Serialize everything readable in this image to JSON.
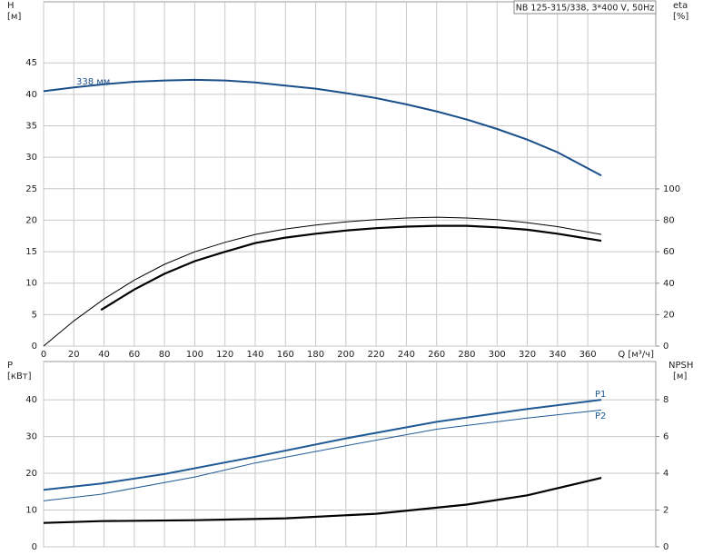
{
  "chart_data": [
    {
      "type": "line",
      "title": "NB 125-315/338, 3*400 V, 50Hz",
      "y_label": "H",
      "y_unit": "[м]",
      "y2_label": "eta",
      "y2_unit": "[%]",
      "x_label": "Q [м³/ч]",
      "xlim": [
        0,
        405
      ],
      "xticks": [
        0,
        20,
        40,
        60,
        80,
        100,
        120,
        140,
        160,
        180,
        200,
        220,
        240,
        260,
        280,
        300,
        320,
        340,
        360
      ],
      "ylim": [
        0,
        54.7
      ],
      "yticks": [
        0,
        5,
        10,
        15,
        20,
        25,
        30,
        35,
        40,
        45
      ],
      "y2lim": [
        0,
        219
      ],
      "y2ticks": [
        0,
        20,
        40,
        60,
        80,
        100
      ],
      "grid": true,
      "series": [
        {
          "name": "338 мм",
          "color": "#1b4f8a",
          "x": [
            0,
            20,
            40,
            60,
            80,
            100,
            120,
            140,
            160,
            180,
            200,
            220,
            240,
            260,
            280,
            300,
            320,
            340,
            369
          ],
          "values": [
            40.5,
            41.1,
            41.6,
            42.0,
            42.2,
            42.3,
            42.2,
            41.9,
            41.4,
            40.9,
            40.2,
            39.4,
            38.4,
            37.3,
            36.0,
            34.5,
            32.8,
            30.8,
            27.1
          ]
        },
        {
          "color": "#000000",
          "axis": "y2",
          "x": [
            0,
            20,
            40,
            60,
            80,
            100,
            120,
            140,
            160,
            180,
            200,
            220,
            240,
            260,
            280,
            300,
            320,
            340,
            369
          ],
          "values": [
            0,
            16,
            30,
            42,
            52,
            60,
            66,
            71,
            74.5,
            77,
            79,
            80.5,
            81.5,
            82,
            81.5,
            80.5,
            78.5,
            76,
            71
          ]
        },
        {
          "color": "#000000",
          "axis": "y2",
          "x": [
            38,
            60,
            80,
            100,
            120,
            140,
            160,
            180,
            200,
            220,
            240,
            260,
            280,
            300,
            320,
            340,
            369
          ],
          "values": [
            23,
            36,
            46,
            54,
            60,
            65.5,
            69,
            71.5,
            73.5,
            75,
            76,
            76.5,
            76.5,
            75.5,
            74,
            71.5,
            67
          ]
        }
      ]
    },
    {
      "type": "line",
      "y_label": "P",
      "y_unit": "[кВт]",
      "y2_label": "NPSH",
      "y2_unit": "[м]",
      "xlim": [
        0,
        405
      ],
      "xticks": [
        0,
        20,
        40,
        60,
        80,
        100,
        120,
        140,
        160,
        180,
        200,
        220,
        240,
        260,
        280,
        300,
        320,
        340,
        360
      ],
      "ylim": [
        0,
        50.4
      ],
      "yticks": [
        0,
        10,
        20,
        30,
        40
      ],
      "y2lim": [
        0,
        10.08
      ],
      "y2ticks": [
        0,
        2,
        4,
        6,
        8
      ],
      "grid": true,
      "series": [
        {
          "name": "P1",
          "color": "#1f5a96",
          "x": [
            0,
            38,
            80,
            140,
            200,
            260,
            320,
            369
          ],
          "values": [
            15.5,
            17.2,
            19.8,
            24.5,
            29.5,
            34,
            37.5,
            40
          ]
        },
        {
          "name": "P2",
          "color": "#1f5a96",
          "x": [
            0,
            38,
            100,
            140,
            200,
            260,
            320,
            369
          ],
          "values": [
            12.5,
            14.3,
            19,
            22.8,
            27.5,
            32,
            35,
            37.2
          ]
        },
        {
          "color": "#000000",
          "axis": "y2",
          "x": [
            0,
            38,
            100,
            160,
            220,
            280,
            320,
            369
          ],
          "values": [
            1.3,
            1.4,
            1.45,
            1.55,
            1.8,
            2.3,
            2.8,
            3.75
          ]
        }
      ]
    }
  ]
}
